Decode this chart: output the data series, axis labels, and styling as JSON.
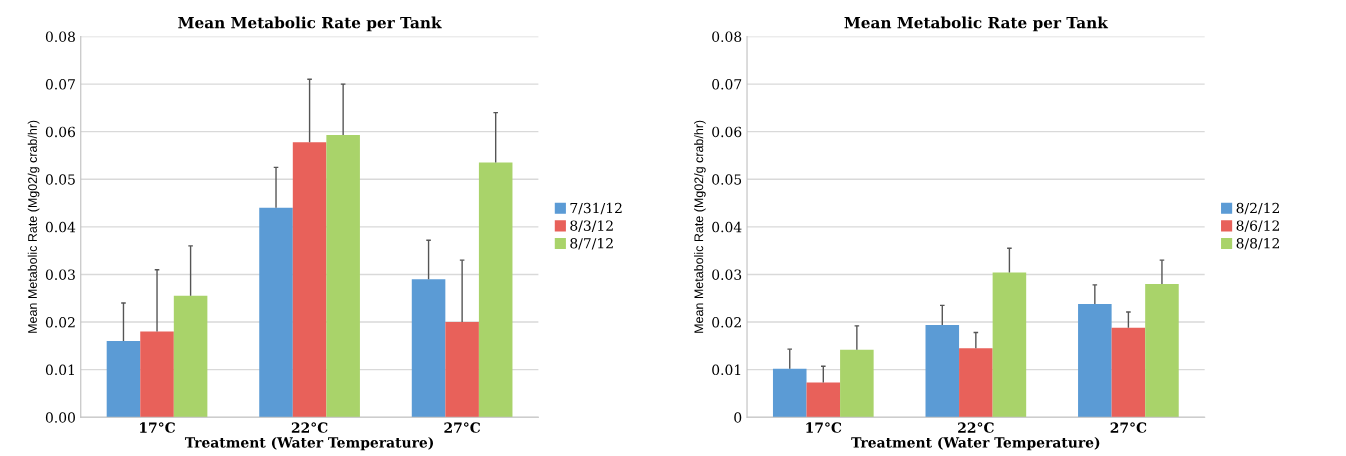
{
  "chart_data": [
    {
      "type": "bar",
      "title": "Mean Metabolic Rate per Tank",
      "xlabel": "Treatment (Water Temperature)",
      "ylabel": "Mean Metabolic Rate (Mg02/g crab/hr)",
      "categories": [
        "17°C",
        "22°C",
        "27°C"
      ],
      "series": [
        {
          "name": "7/31/12",
          "color": "#5b9bd5",
          "values": [
            0.016,
            0.044,
            0.029
          ],
          "errors": [
            [
              0.016,
              0.024
            ],
            [
              0.044,
              0.0525
            ],
            [
              0.029,
              0.0372
            ]
          ]
        },
        {
          "name": "8/3/12",
          "color": "#e8615a",
          "values": [
            0.018,
            0.0578,
            0.02
          ],
          "errors": [
            [
              0.018,
              0.031
            ],
            [
              0.0578,
              0.071
            ],
            [
              0.02,
              0.033
            ]
          ]
        },
        {
          "name": "8/7/12",
          "color": "#a9d36a",
          "values": [
            0.0255,
            0.0593,
            0.0535
          ],
          "errors": [
            [
              0.0255,
              0.036
            ],
            [
              0.0593,
              0.07
            ],
            [
              0.0535,
              0.064
            ]
          ]
        }
      ],
      "ylim": [
        0,
        0.08
      ],
      "yticks": [
        {
          "value": 0,
          "label": "0.00"
        },
        {
          "value": 0.01,
          "label": "0.01"
        },
        {
          "value": 0.02,
          "label": "0.02"
        },
        {
          "value": 0.03,
          "label": "0.03"
        },
        {
          "value": 0.04,
          "label": "0.04"
        },
        {
          "value": 0.05,
          "label": "0.05"
        },
        {
          "value": 0.06,
          "label": "0.06"
        },
        {
          "value": 0.07,
          "label": "0.07"
        },
        {
          "value": 0.08,
          "label": "0.08"
        }
      ],
      "grid": "y",
      "legend": "right"
    },
    {
      "type": "bar",
      "title": "Mean Metabolic Rate per Tank",
      "xlabel": "Treatment (Water Temperature)",
      "ylabel": "Mean Metabolic Rate (Mg02/g crab/hr)",
      "categories": [
        "17°C",
        "22°C",
        "27°C"
      ],
      "series": [
        {
          "name": "8/2/12",
          "color": "#5b9bd5",
          "values": [
            0.0102,
            0.0194,
            0.0238
          ],
          "errors": [
            [
              0.0102,
              0.0143
            ],
            [
              0.0194,
              0.0235
            ],
            [
              0.0238,
              0.0278
            ]
          ]
        },
        {
          "name": "8/6/12",
          "color": "#e8615a",
          "values": [
            0.0073,
            0.0145,
            0.0188
          ],
          "errors": [
            [
              0.0073,
              0.0107
            ],
            [
              0.0145,
              0.0178
            ],
            [
              0.0188,
              0.0221
            ]
          ]
        },
        {
          "name": "8/8/12",
          "color": "#a9d36a",
          "values": [
            0.0142,
            0.0304,
            0.028
          ],
          "errors": [
            [
              0.0142,
              0.0192
            ],
            [
              0.0304,
              0.0355
            ],
            [
              0.028,
              0.033
            ]
          ]
        }
      ],
      "ylim": [
        0,
        0.08
      ],
      "yticks": [
        0,
        0.01,
        0.02,
        0.03,
        0.04,
        0.05,
        0.06,
        0.07,
        0.08
      ],
      "grid": "y",
      "legend": "right"
    }
  ]
}
